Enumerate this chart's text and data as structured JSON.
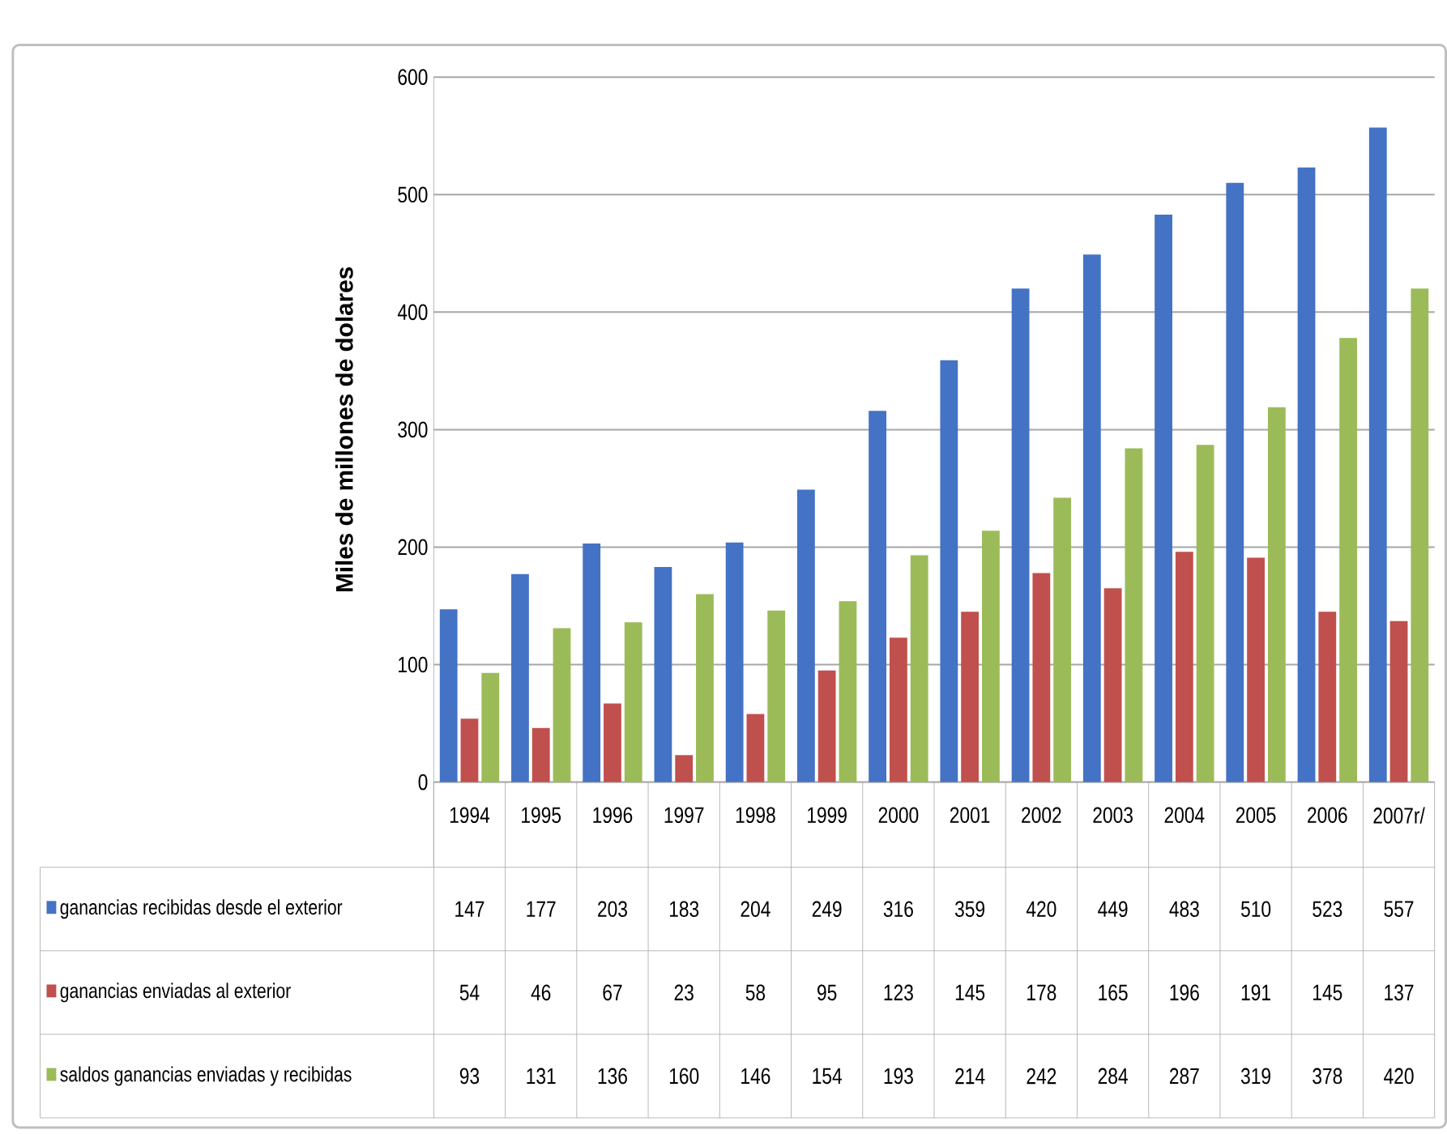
{
  "chart_data": {
    "type": "bar",
    "ylabel": "Miles de millones de dolares",
    "categories": [
      "1994",
      "1995",
      "1996",
      "1997",
      "1998",
      "1999",
      "2000",
      "2001",
      "2002",
      "2003",
      "2004",
      "2005",
      "2006",
      "2007r/"
    ],
    "series": [
      {
        "name": "ganancias recibidas desde el exterior",
        "color": "#4472c4",
        "values": [
          147,
          177,
          203,
          183,
          204,
          249,
          316,
          359,
          420,
          449,
          483,
          510,
          523,
          557
        ]
      },
      {
        "name": "ganancias enviadas al exterior",
        "color": "#c0504d",
        "values": [
          54,
          46,
          67,
          23,
          58,
          95,
          123,
          145,
          178,
          165,
          196,
          191,
          145,
          137
        ]
      },
      {
        "name": "saldos ganancias enviadas y recibidas",
        "color": "#9bbb59",
        "values": [
          93,
          131,
          136,
          160,
          146,
          154,
          193,
          214,
          242,
          284,
          287,
          319,
          378,
          420
        ]
      }
    ],
    "ylim": [
      0,
      600
    ],
    "yticks": [
      0,
      100,
      200,
      300,
      400,
      500,
      600
    ],
    "grid": "y",
    "legend": "bottom",
    "data_labels": true
  }
}
